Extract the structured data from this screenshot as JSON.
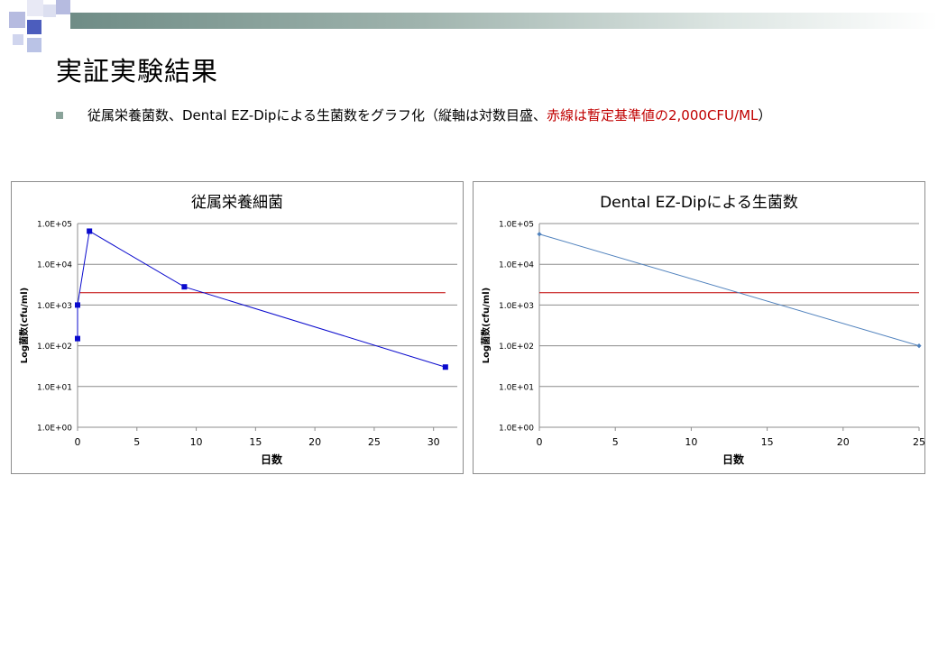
{
  "slide": {
    "title": "実証実験結果",
    "bullet": {
      "text_black": "従属栄養菌数、Dental EZ-Dipによる生菌数をグラフ化（縦軸は対数目盛、",
      "text_red": "赤線は暫定基準値の2,000CFU/ML",
      "text_close": "）"
    }
  },
  "colors": {
    "series_left": "#0a0acd",
    "series_right": "#4f81bd",
    "threshold": "#c00000",
    "grid": "#8c8c8c"
  },
  "chart_data": [
    {
      "type": "scatter",
      "title": "従属栄養細菌",
      "xlabel": "日数",
      "ylabel": "Log菌数(cfu/ml)",
      "y_scale": "log",
      "xlim": [
        0,
        32
      ],
      "ylim": [
        1,
        100000
      ],
      "x_ticks": [
        0,
        5,
        10,
        15,
        20,
        25,
        30
      ],
      "y_ticks": [
        "1.0E+00",
        "1.0E+01",
        "1.0E+02",
        "1.0E+03",
        "1.0E+04",
        "1.0E+05"
      ],
      "grid": "horizontal",
      "series": [
        {
          "x": [
            0,
            0,
            1,
            9,
            31
          ],
          "y": [
            150,
            1000,
            65000,
            2800,
            30
          ],
          "marker": "square",
          "connected": true
        }
      ],
      "threshold": {
        "y": 2000,
        "x_range": [
          0.2,
          31
        ]
      }
    },
    {
      "type": "scatter",
      "title": "Dental EZ-Dipによる生菌数",
      "xlabel": "日数",
      "ylabel": "Log菌数(cfu/ml)",
      "y_scale": "log",
      "xlim": [
        0,
        25
      ],
      "ylim": [
        1,
        100000
      ],
      "x_ticks": [
        0,
        5,
        10,
        15,
        20,
        25
      ],
      "y_ticks": [
        "1.0E+00",
        "1.0E+01",
        "1.0E+02",
        "1.0E+03",
        "1.0E+04",
        "1.0E+05"
      ],
      "grid": "horizontal",
      "series": [
        {
          "x": [
            0,
            25
          ],
          "y": [
            55000,
            100
          ],
          "marker": "diamond",
          "connected": true
        }
      ],
      "threshold": {
        "y": 2000,
        "x_range": [
          0,
          25
        ]
      }
    }
  ]
}
